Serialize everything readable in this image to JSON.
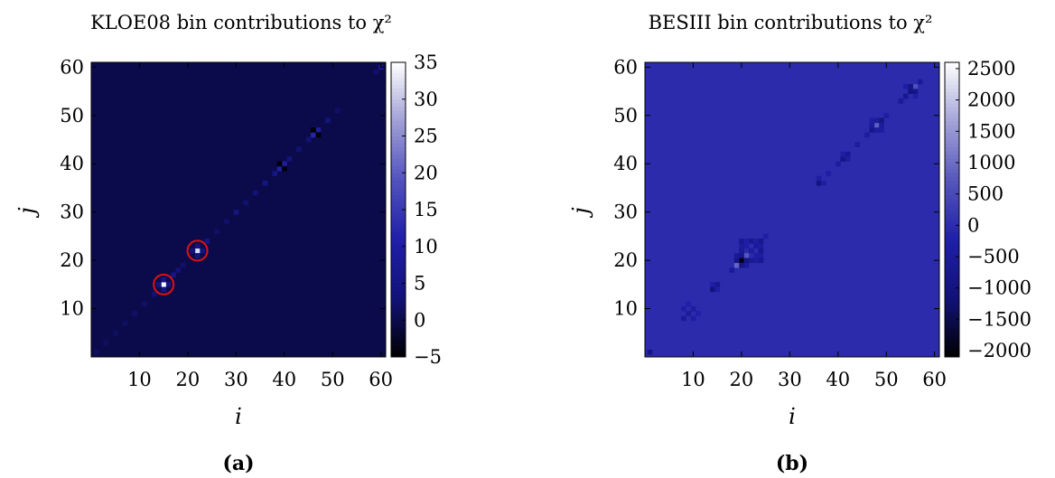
{
  "panels": [
    {
      "caption": "(a)"
    },
    {
      "caption": "(b)"
    }
  ],
  "chart_data": [
    {
      "type": "heatmap",
      "title": "KLOE08 bin contributions to χ²",
      "xlabel": "i",
      "ylabel": "j",
      "xlim": [
        0,
        61
      ],
      "ylim": [
        0,
        61
      ],
      "x_ticks": [
        10,
        20,
        30,
        40,
        50,
        60
      ],
      "y_ticks": [
        10,
        20,
        30,
        40,
        50,
        60
      ],
      "colorbar": {
        "min": -5,
        "max": 35,
        "ticks": [
          35,
          30,
          25,
          20,
          15,
          10,
          5,
          0,
          -5
        ],
        "tick_labels": [
          "35",
          "30",
          "25",
          "20",
          "15",
          "10",
          "5",
          "0",
          "−5"
        ],
        "colormap": [
          "#000000",
          "#121278",
          "#1f1fa8",
          "#5252be",
          "#9f9fd6",
          "#ffffff"
        ]
      },
      "grid_size": 61,
      "background_value": 0,
      "cells": [
        {
          "i": 1,
          "j": 1,
          "v": 1.5
        },
        {
          "i": 3,
          "j": 3,
          "v": 1.5
        },
        {
          "i": 5,
          "j": 5,
          "v": 1.5
        },
        {
          "i": 7,
          "j": 7,
          "v": 1.5
        },
        {
          "i": 9,
          "j": 9,
          "v": 2
        },
        {
          "i": 11,
          "j": 11,
          "v": 2
        },
        {
          "i": 13,
          "j": 13,
          "v": 2.5
        },
        {
          "i": 15,
          "j": 15,
          "v": 35
        },
        {
          "i": 14,
          "j": 15,
          "v": 5
        },
        {
          "i": 15,
          "j": 14,
          "v": 5
        },
        {
          "i": 16,
          "j": 15,
          "v": 5
        },
        {
          "i": 15,
          "j": 16,
          "v": 5
        },
        {
          "i": 17,
          "j": 17,
          "v": 5
        },
        {
          "i": 18,
          "j": 18,
          "v": 3
        },
        {
          "i": 19,
          "j": 19,
          "v": 2
        },
        {
          "i": 22,
          "j": 22,
          "v": 32
        },
        {
          "i": 21,
          "j": 22,
          "v": 4
        },
        {
          "i": 22,
          "j": 21,
          "v": 4
        },
        {
          "i": 23,
          "j": 22,
          "v": 4
        },
        {
          "i": 22,
          "j": 23,
          "v": 4
        },
        {
          "i": 24,
          "j": 24,
          "v": 5
        },
        {
          "i": 26,
          "j": 26,
          "v": 2
        },
        {
          "i": 28,
          "j": 28,
          "v": 2
        },
        {
          "i": 30,
          "j": 30,
          "v": 4
        },
        {
          "i": 32,
          "j": 32,
          "v": 2.5
        },
        {
          "i": 34,
          "j": 34,
          "v": 3
        },
        {
          "i": 36,
          "j": 36,
          "v": 5
        },
        {
          "i": 38,
          "j": 38,
          "v": 5
        },
        {
          "i": 39,
          "j": 39,
          "v": 11
        },
        {
          "i": 40,
          "j": 40,
          "v": 10
        },
        {
          "i": 39,
          "j": 40,
          "v": -5
        },
        {
          "i": 40,
          "j": 39,
          "v": -5
        },
        {
          "i": 41,
          "j": 41,
          "v": 3
        },
        {
          "i": 43,
          "j": 43,
          "v": 2.5
        },
        {
          "i": 45,
          "j": 45,
          "v": 3
        },
        {
          "i": 46,
          "j": 46,
          "v": 12
        },
        {
          "i": 47,
          "j": 47,
          "v": 10
        },
        {
          "i": 46,
          "j": 47,
          "v": -5
        },
        {
          "i": 47,
          "j": 46,
          "v": -5
        },
        {
          "i": 49,
          "j": 49,
          "v": 4
        },
        {
          "i": 51,
          "j": 51,
          "v": 2
        },
        {
          "i": 60,
          "j": 60,
          "v": 6
        },
        {
          "i": 59,
          "j": 59,
          "v": 2
        }
      ],
      "annotations": [
        {
          "type": "circle",
          "i": 15,
          "j": 15,
          "color": "#e01010"
        },
        {
          "type": "circle",
          "i": 22,
          "j": 22,
          "color": "#e01010"
        }
      ]
    },
    {
      "type": "heatmap",
      "title": "BESIII bin contributions to χ²",
      "xlabel": "i",
      "ylabel": "j",
      "xlim": [
        0,
        61
      ],
      "ylim": [
        0,
        61
      ],
      "x_ticks": [
        10,
        20,
        30,
        40,
        50,
        60
      ],
      "y_ticks": [
        10,
        20,
        30,
        40,
        50,
        60
      ],
      "colorbar": {
        "min": -2100,
        "max": 2600,
        "ticks": [
          2500,
          2000,
          1500,
          1000,
          500,
          0,
          -500,
          -1000,
          -1500,
          -2000
        ],
        "tick_labels": [
          "2500",
          "2000",
          "1500",
          "1000",
          "500",
          "0",
          "−500",
          "−1000",
          "−1500",
          "−2000"
        ],
        "colormap": [
          "#000000",
          "#121278",
          "#1f1fa8",
          "#5656bc",
          "#a3a3d8",
          "#ffffff"
        ]
      },
      "grid_size": 61,
      "background_value": -20,
      "cells": [
        {
          "i": 1,
          "j": 1,
          "v": -900
        },
        {
          "i": 8,
          "j": 8,
          "v": -500
        },
        {
          "i": 9,
          "j": 9,
          "v": -450
        },
        {
          "i": 10,
          "j": 10,
          "v": -400
        },
        {
          "i": 8,
          "j": 10,
          "v": -250
        },
        {
          "i": 10,
          "j": 8,
          "v": -250
        },
        {
          "i": 9,
          "j": 11,
          "v": -200
        },
        {
          "i": 11,
          "j": 9,
          "v": -200
        },
        {
          "i": 14,
          "j": 14,
          "v": -1100
        },
        {
          "i": 15,
          "j": 15,
          "v": -700
        },
        {
          "i": 14,
          "j": 15,
          "v": -250
        },
        {
          "i": 15,
          "j": 14,
          "v": -250
        },
        {
          "i": 18,
          "j": 18,
          "v": -500
        },
        {
          "i": 19,
          "j": 19,
          "v": 900
        },
        {
          "i": 20,
          "j": 20,
          "v": -2000
        },
        {
          "i": 21,
          "j": 21,
          "v": 700
        },
        {
          "i": 19,
          "j": 20,
          "v": -900
        },
        {
          "i": 20,
          "j": 19,
          "v": -900
        },
        {
          "i": 20,
          "j": 21,
          "v": -900
        },
        {
          "i": 21,
          "j": 20,
          "v": -900
        },
        {
          "i": 19,
          "j": 21,
          "v": -500
        },
        {
          "i": 21,
          "j": 19,
          "v": -500
        },
        {
          "i": 20,
          "j": 22,
          "v": -600
        },
        {
          "i": 22,
          "j": 20,
          "v": -600
        },
        {
          "i": 20,
          "j": 24,
          "v": -700
        },
        {
          "i": 24,
          "j": 20,
          "v": -700
        },
        {
          "i": 22,
          "j": 24,
          "v": -700
        },
        {
          "i": 24,
          "j": 22,
          "v": -700
        },
        {
          "i": 24,
          "j": 24,
          "v": -800
        },
        {
          "i": 23,
          "j": 23,
          "v": -500
        },
        {
          "i": 22,
          "j": 22,
          "v": -400
        },
        {
          "i": 25,
          "j": 25,
          "v": -300
        },
        {
          "i": 20,
          "j": 23,
          "v": -450
        },
        {
          "i": 23,
          "j": 20,
          "v": -450
        },
        {
          "i": 24,
          "j": 23,
          "v": -350
        },
        {
          "i": 23,
          "j": 24,
          "v": -350
        },
        {
          "i": 21,
          "j": 23,
          "v": -300
        },
        {
          "i": 23,
          "j": 21,
          "v": -300
        },
        {
          "i": 21,
          "j": 24,
          "v": -300
        },
        {
          "i": 24,
          "j": 21,
          "v": -300
        },
        {
          "i": 36,
          "j": 36,
          "v": -1000
        },
        {
          "i": 36,
          "j": 37,
          "v": -300
        },
        {
          "i": 37,
          "j": 36,
          "v": -300
        },
        {
          "i": 38,
          "j": 38,
          "v": -300
        },
        {
          "i": 40,
          "j": 40,
          "v": -400
        },
        {
          "i": 41,
          "j": 41,
          "v": -900
        },
        {
          "i": 42,
          "j": 42,
          "v": -700
        },
        {
          "i": 41,
          "j": 42,
          "v": -300
        },
        {
          "i": 42,
          "j": 41,
          "v": -300
        },
        {
          "i": 44,
          "j": 44,
          "v": -450
        },
        {
          "i": 46,
          "j": 46,
          "v": -400
        },
        {
          "i": 47,
          "j": 47,
          "v": -800
        },
        {
          "i": 48,
          "j": 48,
          "v": 800
        },
        {
          "i": 49,
          "j": 49,
          "v": -900
        },
        {
          "i": 47,
          "j": 49,
          "v": -350
        },
        {
          "i": 49,
          "j": 47,
          "v": -350
        },
        {
          "i": 48,
          "j": 47,
          "v": -450
        },
        {
          "i": 47,
          "j": 48,
          "v": -450
        },
        {
          "i": 48,
          "j": 49,
          "v": -450
        },
        {
          "i": 49,
          "j": 48,
          "v": -450
        },
        {
          "i": 50,
          "j": 50,
          "v": -300
        },
        {
          "i": 53,
          "j": 53,
          "v": -500
        },
        {
          "i": 54,
          "j": 54,
          "v": -700
        },
        {
          "i": 55,
          "j": 55,
          "v": -1000
        },
        {
          "i": 56,
          "j": 56,
          "v": 600
        },
        {
          "i": 55,
          "j": 56,
          "v": -900
        },
        {
          "i": 56,
          "j": 55,
          "v": -900
        },
        {
          "i": 54,
          "j": 56,
          "v": -300
        },
        {
          "i": 56,
          "j": 54,
          "v": -300
        },
        {
          "i": 57,
          "j": 57,
          "v": -500
        }
      ]
    }
  ]
}
